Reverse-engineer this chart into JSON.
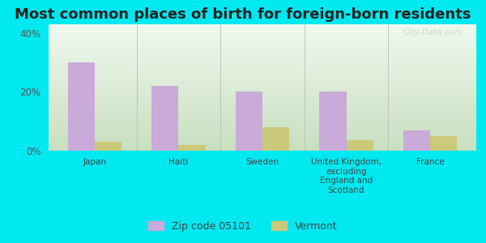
{
  "title": "Most common places of birth for foreign-born residents",
  "categories": [
    "Japan",
    "Haiti",
    "Sweden",
    "United Kingdom,\nexcluding\nEngland and\nScotland",
    "France"
  ],
  "zip_values": [
    30,
    22,
    20,
    20,
    7
  ],
  "vt_values": [
    3,
    2,
    8,
    3.5,
    5
  ],
  "zip_color": "#c9aad8",
  "vt_color": "#caca7a",
  "background_outer": "#00e8f0",
  "background_inner_top": "#f0f8ee",
  "background_inner_bottom": "#c8dfc0",
  "ylim": [
    0,
    43
  ],
  "yticks": [
    0,
    20,
    40
  ],
  "ytick_labels": [
    "0%",
    "20%",
    "40%"
  ],
  "title_fontsize": 13,
  "legend_zip_label": "Zip code 05101",
  "legend_vt_label": "Vermont",
  "bar_width": 0.32,
  "watermark": "City-Data.com"
}
